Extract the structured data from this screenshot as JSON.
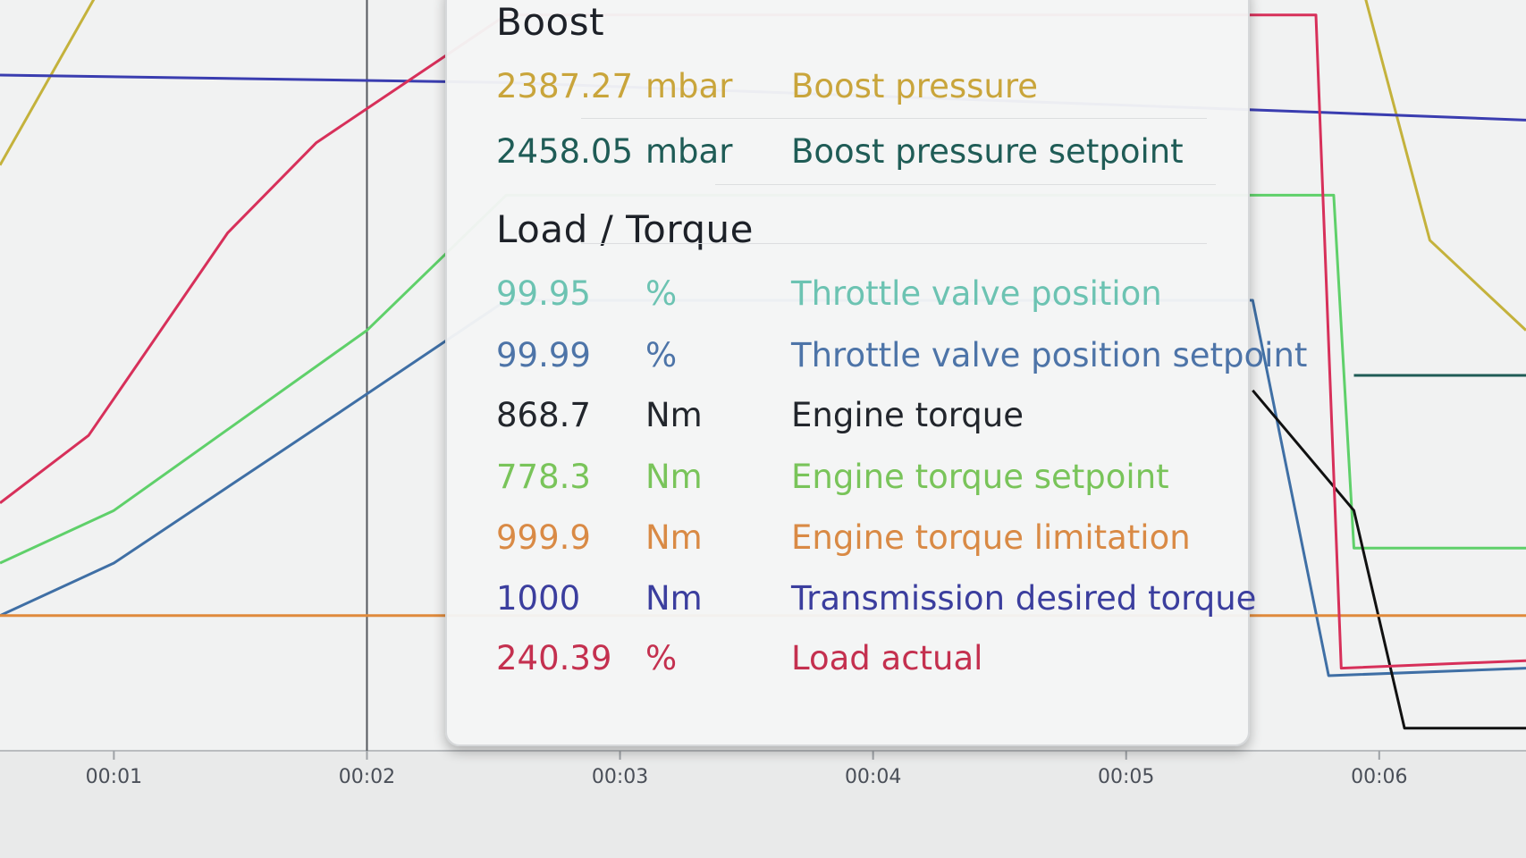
{
  "chart_data": {
    "type": "line",
    "x_ticks": [
      "00:01",
      "00:02",
      "00:03",
      "00:04",
      "00:05",
      "00:06"
    ],
    "xlim": [
      0.55,
      6.58
    ],
    "ylim": [
      0,
      1
    ],
    "cursor_time": "00:02",
    "series": [
      {
        "name": "Boost pressure",
        "color": "#c4b23c",
        "values": [
          [
            0.55,
            0.78
          ],
          [
            1.02,
            1.06
          ],
          [
            5.9,
            1.06
          ],
          [
            6.2,
            0.68
          ],
          [
            6.58,
            0.56
          ]
        ]
      },
      {
        "name": "Boost pressure setpoint",
        "color": "#1f5c56",
        "values": [
          [
            5.9,
            0.5
          ],
          [
            6.58,
            0.5
          ]
        ]
      },
      {
        "name": "Throttle valve position",
        "color": "#5fd06a",
        "values": [
          [
            0.55,
            0.25
          ],
          [
            1.0,
            0.32
          ],
          [
            2.0,
            0.56
          ],
          [
            2.55,
            0.74
          ],
          [
            5.82,
            0.74
          ],
          [
            5.9,
            0.27
          ],
          [
            6.58,
            0.27
          ]
        ]
      },
      {
        "name": "Throttle valve position setpoint",
        "color": "#3f6fa5",
        "values": [
          [
            0.55,
            0.18
          ],
          [
            1.0,
            0.25
          ],
          [
            1.8,
            0.43
          ],
          [
            2.55,
            0.6
          ],
          [
            5.5,
            0.6
          ],
          [
            5.8,
            0.1
          ],
          [
            6.58,
            0.11
          ]
        ]
      },
      {
        "name": "Engine torque",
        "color": "#111111",
        "values": [
          [
            5.5,
            0.48
          ],
          [
            5.9,
            0.32
          ],
          [
            6.1,
            0.03
          ],
          [
            6.58,
            0.03
          ]
        ]
      },
      {
        "name": "Engine torque setpoint",
        "color": "#9cdb6a",
        "values": []
      },
      {
        "name": "Engine torque limitation",
        "color": "#e08a3c",
        "values": [
          [
            0.55,
            0.18
          ],
          [
            6.58,
            0.18
          ]
        ]
      },
      {
        "name": "Transmission desired torque",
        "color": "#3a3db0",
        "values": [
          [
            0.55,
            0.9
          ],
          [
            2.55,
            0.89
          ],
          [
            5.8,
            0.85
          ],
          [
            6.58,
            0.84
          ]
        ]
      },
      {
        "name": "Load actual",
        "color": "#d7305a",
        "values": [
          [
            0.55,
            0.33
          ],
          [
            0.9,
            0.42
          ],
          [
            1.45,
            0.69
          ],
          [
            1.8,
            0.81
          ],
          [
            2.55,
            0.98
          ],
          [
            5.75,
            0.98
          ],
          [
            5.85,
            0.11
          ],
          [
            6.58,
            0.12
          ]
        ]
      }
    ]
  },
  "tooltip": {
    "groups": [
      {
        "title": "Boost",
        "rows": [
          {
            "value": "2387.27",
            "unit": "mbar",
            "name": "Boost pressure",
            "color": "#c9a53b"
          },
          {
            "value": "2458.05",
            "unit": "mbar",
            "name": "Boost pressure setpoint",
            "color": "#1f5c56"
          }
        ]
      },
      {
        "title": "Load / Torque",
        "rows": [
          {
            "value": "99.95",
            "unit": "%",
            "name": "Throttle valve position",
            "color": "#6cc3b2"
          },
          {
            "value": "99.99",
            "unit": "%",
            "name": "Throttle valve position setpoint",
            "color": "#4d74a8"
          },
          {
            "value": "868.7",
            "unit": "Nm",
            "name": "Engine torque",
            "color": "#22262c"
          },
          {
            "value": "778.3",
            "unit": "Nm",
            "name": "Engine torque setpoint",
            "color": "#79c45a"
          },
          {
            "value": "999.9",
            "unit": "Nm",
            "name": "Engine torque limitation",
            "color": "#d98a45"
          },
          {
            "value": "1000",
            "unit": "Nm",
            "name": "Transmission desired torque",
            "color": "#3b3e9e"
          },
          {
            "value": "240.39",
            "unit": "%",
            "name": "Load actual",
            "color": "#c4304f"
          }
        ]
      }
    ]
  }
}
